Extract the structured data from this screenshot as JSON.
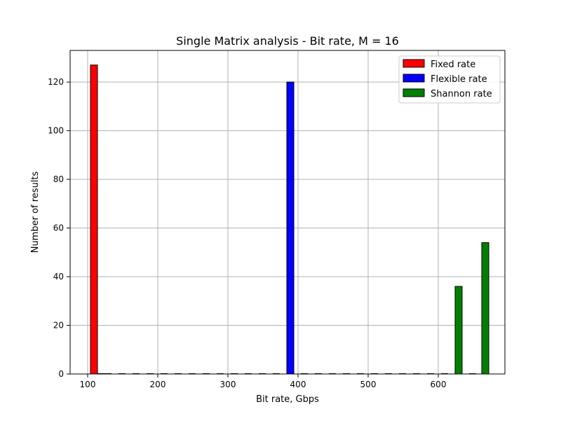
{
  "chart_data": {
    "type": "bar",
    "title": "Single Matrix analysis - Bit rate, M = 16",
    "xlabel": "Bit rate, Gbps",
    "ylabel": "Number of results",
    "xlim": [
      75,
      695
    ],
    "ylim": [
      0,
      133
    ],
    "xticks": [
      100,
      200,
      300,
      400,
      500,
      600
    ],
    "yticks": [
      0,
      20,
      40,
      60,
      80,
      100,
      120
    ],
    "grid": true,
    "legend_position": "top-right",
    "series": [
      {
        "name": "Fixed rate",
        "color": "#ff0000",
        "bins": [
          {
            "x0": 104,
            "x1": 114,
            "count": 127
          },
          {
            "x0": 114,
            "x1": 124,
            "count": 0
          },
          {
            "x0": 124,
            "x1": 134,
            "count": 0
          }
        ]
      },
      {
        "name": "Flexible rate",
        "color": "#0000ff",
        "bins": [
          {
            "x0": 384,
            "x1": 394,
            "count": 120
          }
        ]
      },
      {
        "name": "Shannon rate",
        "color": "#008000",
        "bins": [
          {
            "x0": 624,
            "x1": 634,
            "count": 36
          },
          {
            "x0": 662,
            "x1": 672,
            "count": 54
          }
        ]
      }
    ],
    "zero_bins_x": [
      144,
      164,
      184,
      204,
      224,
      244,
      264,
      284,
      304,
      324,
      344,
      364,
      404,
      424,
      444,
      464,
      484,
      504,
      524,
      544,
      564,
      584,
      604,
      644
    ]
  }
}
